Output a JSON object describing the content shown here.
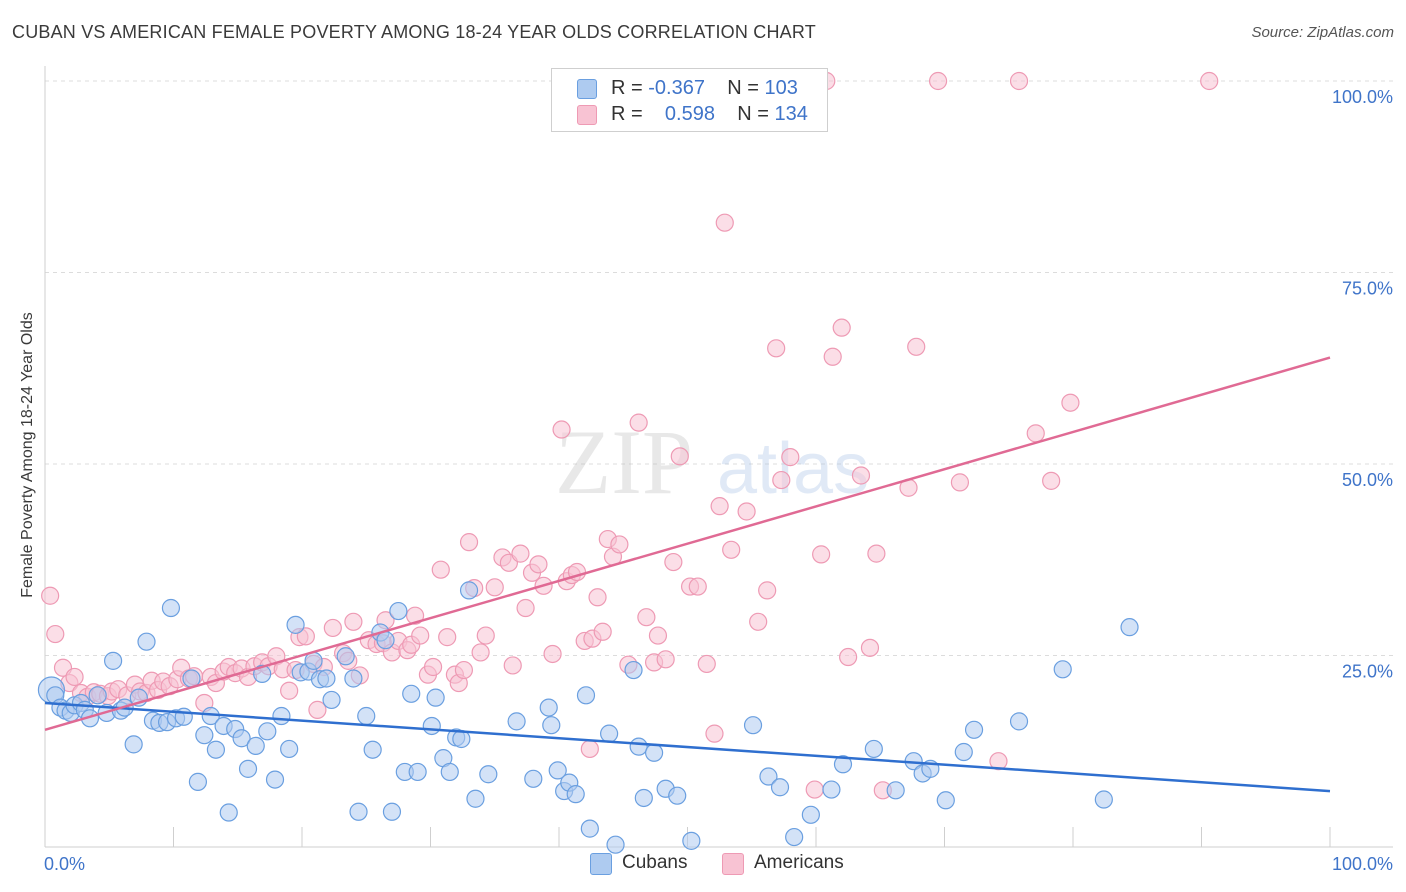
{
  "title": "CUBAN VS AMERICAN FEMALE POVERTY AMONG 18-24 YEAR OLDS CORRELATION CHART",
  "source": "Source: ZipAtlas.com",
  "watermark": {
    "zip": "ZIP",
    "atlas": "atlas"
  },
  "legend": {
    "rows": [
      {
        "r_label": "R =",
        "r_value": "-0.367",
        "n_label": "N =",
        "n_value": "103"
      },
      {
        "r_label": "R =",
        "r_value": "0.598",
        "n_label": "N =",
        "n_value": "134"
      }
    ],
    "bottom": [
      "Cubans",
      "Americans"
    ]
  },
  "colors": {
    "cubans_fill": "#aecbf0",
    "cubans_edge": "#6a9fe0",
    "cubans_line": "#2f6fcf",
    "americans_fill": "#f8c3d3",
    "americans_edge": "#ee9ab4",
    "americans_line": "#e06a94",
    "tick_label": "#3f74c9"
  },
  "chart_data": {
    "type": "scatter",
    "title": "CUBAN VS AMERICAN FEMALE POVERTY AMONG 18-24 YEAR OLDS CORRELATION CHART",
    "xlabel": "",
    "ylabel": "Female Poverty Among 18-24 Year Olds",
    "xlim": [
      0,
      100
    ],
    "ylim": [
      0,
      100
    ],
    "x_tick_labels": [
      "0.0%",
      "100.0%"
    ],
    "y_tick_labels": [
      "25.0%",
      "50.0%",
      "75.0%",
      "100.0%"
    ],
    "y_ticks": [
      25,
      50,
      75,
      100
    ],
    "grid": true,
    "legend_position": "top-center",
    "series": [
      {
        "name": "Cubans",
        "r": -0.367,
        "n": 103,
        "trend": [
          [
            0,
            18.8
          ],
          [
            100,
            7.3
          ]
        ],
        "points": [
          [
            0.5,
            20.5
          ],
          [
            0.8,
            19.8
          ],
          [
            1.2,
            18.2
          ],
          [
            1.6,
            17.8
          ],
          [
            2.0,
            17.5
          ],
          [
            2.3,
            18.5
          ],
          [
            2.8,
            18.8
          ],
          [
            3.1,
            17.9
          ],
          [
            3.5,
            16.8
          ],
          [
            4.1,
            19.8
          ],
          [
            4.8,
            17.5
          ],
          [
            5.3,
            24.3
          ],
          [
            5.9,
            17.8
          ],
          [
            6.2,
            18.2
          ],
          [
            6.9,
            13.4
          ],
          [
            7.3,
            19.5
          ],
          [
            7.9,
            26.8
          ],
          [
            8.4,
            16.5
          ],
          [
            8.9,
            16.2
          ],
          [
            9.5,
            16.3
          ],
          [
            9.8,
            31.2
          ],
          [
            10.2,
            16.8
          ],
          [
            10.8,
            17.0
          ],
          [
            11.4,
            22.0
          ],
          [
            11.9,
            8.5
          ],
          [
            12.4,
            14.6
          ],
          [
            12.9,
            17.1
          ],
          [
            13.3,
            12.7
          ],
          [
            13.9,
            15.8
          ],
          [
            14.3,
            4.5
          ],
          [
            14.8,
            15.4
          ],
          [
            15.3,
            14.2
          ],
          [
            15.8,
            10.2
          ],
          [
            16.4,
            13.2
          ],
          [
            16.9,
            22.6
          ],
          [
            17.3,
            15.1
          ],
          [
            17.9,
            8.8
          ],
          [
            18.4,
            17.1
          ],
          [
            19.0,
            12.8
          ],
          [
            19.5,
            29.0
          ],
          [
            19.9,
            22.8
          ],
          [
            20.5,
            22.9
          ],
          [
            20.9,
            24.3
          ],
          [
            21.4,
            21.9
          ],
          [
            21.9,
            22.0
          ],
          [
            22.3,
            19.2
          ],
          [
            23.4,
            24.9
          ],
          [
            24.0,
            22.0
          ],
          [
            24.4,
            4.6
          ],
          [
            25.0,
            17.1
          ],
          [
            25.5,
            12.7
          ],
          [
            26.1,
            28.0
          ],
          [
            26.5,
            27.0
          ],
          [
            27.0,
            4.6
          ],
          [
            27.5,
            30.8
          ],
          [
            28.0,
            9.8
          ],
          [
            28.5,
            20.0
          ],
          [
            29.0,
            9.8
          ],
          [
            30.1,
            15.8
          ],
          [
            30.4,
            19.5
          ],
          [
            31.0,
            11.6
          ],
          [
            31.5,
            9.8
          ],
          [
            32.0,
            14.3
          ],
          [
            32.4,
            14.1
          ],
          [
            33.0,
            33.5
          ],
          [
            33.5,
            6.3
          ],
          [
            34.5,
            9.5
          ],
          [
            36.7,
            16.4
          ],
          [
            38.0,
            8.9
          ],
          [
            39.2,
            18.2
          ],
          [
            39.4,
            15.9
          ],
          [
            39.9,
            10.0
          ],
          [
            40.4,
            7.3
          ],
          [
            40.8,
            8.4
          ],
          [
            41.3,
            6.9
          ],
          [
            42.1,
            19.8
          ],
          [
            42.4,
            2.4
          ],
          [
            43.9,
            14.8
          ],
          [
            44.4,
            0.3
          ],
          [
            45.8,
            23.1
          ],
          [
            46.2,
            13.1
          ],
          [
            46.6,
            6.4
          ],
          [
            47.4,
            12.3
          ],
          [
            48.3,
            7.6
          ],
          [
            49.2,
            6.7
          ],
          [
            50.3,
            0.8
          ],
          [
            55.1,
            15.9
          ],
          [
            56.3,
            9.2
          ],
          [
            57.2,
            7.8
          ],
          [
            58.3,
            1.3
          ],
          [
            59.6,
            4.2
          ],
          [
            61.2,
            7.5
          ],
          [
            62.1,
            10.8
          ],
          [
            64.5,
            12.8
          ],
          [
            66.2,
            7.4
          ],
          [
            67.6,
            11.2
          ],
          [
            68.3,
            9.6
          ],
          [
            68.9,
            10.2
          ],
          [
            70.1,
            6.1
          ],
          [
            71.5,
            12.4
          ],
          [
            72.3,
            15.3
          ],
          [
            75.8,
            16.4
          ],
          [
            79.2,
            23.2
          ],
          [
            82.4,
            6.2
          ],
          [
            84.4,
            28.7
          ]
        ]
      },
      {
        "name": "Americans",
        "r": 0.598,
        "n": 134,
        "trend": [
          [
            0,
            15.3
          ],
          [
            100,
            63.9
          ]
        ],
        "points": [
          [
            0.4,
            32.8
          ],
          [
            0.8,
            27.8
          ],
          [
            1.4,
            23.4
          ],
          [
            1.9,
            21.4
          ],
          [
            2.3,
            22.2
          ],
          [
            2.8,
            20.1
          ],
          [
            3.3,
            19.6
          ],
          [
            3.8,
            20.2
          ],
          [
            4.3,
            20.0
          ],
          [
            4.9,
            19.7
          ],
          [
            5.2,
            20.3
          ],
          [
            5.7,
            20.6
          ],
          [
            6.4,
            19.8
          ],
          [
            7.0,
            21.2
          ],
          [
            7.4,
            20.3
          ],
          [
            7.9,
            20.1
          ],
          [
            8.3,
            21.7
          ],
          [
            8.8,
            20.5
          ],
          [
            9.2,
            21.6
          ],
          [
            9.7,
            21.0
          ],
          [
            10.3,
            21.9
          ],
          [
            10.6,
            23.4
          ],
          [
            11.2,
            22.0
          ],
          [
            11.6,
            22.3
          ],
          [
            12.4,
            18.8
          ],
          [
            12.9,
            22.2
          ],
          [
            13.3,
            21.4
          ],
          [
            13.9,
            22.9
          ],
          [
            14.3,
            23.5
          ],
          [
            14.8,
            22.7
          ],
          [
            15.3,
            23.3
          ],
          [
            15.8,
            22.2
          ],
          [
            16.3,
            23.6
          ],
          [
            16.9,
            24.1
          ],
          [
            17.4,
            23.6
          ],
          [
            18.0,
            24.9
          ],
          [
            18.5,
            23.2
          ],
          [
            19.0,
            20.4
          ],
          [
            19.5,
            23.1
          ],
          [
            19.8,
            27.4
          ],
          [
            20.3,
            27.5
          ],
          [
            20.9,
            23.9
          ],
          [
            21.2,
            17.9
          ],
          [
            21.7,
            23.5
          ],
          [
            22.4,
            28.6
          ],
          [
            23.2,
            25.3
          ],
          [
            23.6,
            24.3
          ],
          [
            24.0,
            29.4
          ],
          [
            24.5,
            22.4
          ],
          [
            25.2,
            27.0
          ],
          [
            25.8,
            26.5
          ],
          [
            26.3,
            26.6
          ],
          [
            26.5,
            29.6
          ],
          [
            27.0,
            25.4
          ],
          [
            27.5,
            26.9
          ],
          [
            28.2,
            25.7
          ],
          [
            28.5,
            26.4
          ],
          [
            28.8,
            30.2
          ],
          [
            29.2,
            27.6
          ],
          [
            29.8,
            22.5
          ],
          [
            30.2,
            23.5
          ],
          [
            30.8,
            36.2
          ],
          [
            31.3,
            27.4
          ],
          [
            31.9,
            22.5
          ],
          [
            32.2,
            21.4
          ],
          [
            32.6,
            23.1
          ],
          [
            33.0,
            39.8
          ],
          [
            33.4,
            33.8
          ],
          [
            33.9,
            25.4
          ],
          [
            34.3,
            27.6
          ],
          [
            35.0,
            33.9
          ],
          [
            35.6,
            37.8
          ],
          [
            36.1,
            37.1
          ],
          [
            36.4,
            23.7
          ],
          [
            37.0,
            38.3
          ],
          [
            37.4,
            31.2
          ],
          [
            37.9,
            35.8
          ],
          [
            38.4,
            36.9
          ],
          [
            38.8,
            34.1
          ],
          [
            39.5,
            25.2
          ],
          [
            40.2,
            54.5
          ],
          [
            40.6,
            34.7
          ],
          [
            41.0,
            35.5
          ],
          [
            41.4,
            35.9
          ],
          [
            42.0,
            26.9
          ],
          [
            42.4,
            12.8
          ],
          [
            42.6,
            27.2
          ],
          [
            43.0,
            32.6
          ],
          [
            43.4,
            28.1
          ],
          [
            43.8,
            40.2
          ],
          [
            44.2,
            37.9
          ],
          [
            44.7,
            39.5
          ],
          [
            45.4,
            23.8
          ],
          [
            46.2,
            55.4
          ],
          [
            46.8,
            30.0
          ],
          [
            47.4,
            24.1
          ],
          [
            47.7,
            27.6
          ],
          [
            48.3,
            24.5
          ],
          [
            48.9,
            37.2
          ],
          [
            49.4,
            51.0
          ],
          [
            50.2,
            34.0
          ],
          [
            50.8,
            34.0
          ],
          [
            51.5,
            23.9
          ],
          [
            52.1,
            14.8
          ],
          [
            52.5,
            44.5
          ],
          [
            52.9,
            81.5
          ],
          [
            53.4,
            38.8
          ],
          [
            54.6,
            43.8
          ],
          [
            55.5,
            29.4
          ],
          [
            56.2,
            33.5
          ],
          [
            56.9,
            65.1
          ],
          [
            57.3,
            47.9
          ],
          [
            58.0,
            50.9
          ],
          [
            59.9,
            7.5
          ],
          [
            60.4,
            38.2
          ],
          [
            61.3,
            64.0
          ],
          [
            62.0,
            67.8
          ],
          [
            62.5,
            24.8
          ],
          [
            63.5,
            48.5
          ],
          [
            64.2,
            26.0
          ],
          [
            64.7,
            38.3
          ],
          [
            65.2,
            7.4
          ],
          [
            67.2,
            46.9
          ],
          [
            67.8,
            65.3
          ],
          [
            69.5,
            100
          ],
          [
            71.2,
            47.6
          ],
          [
            74.2,
            11.2
          ],
          [
            75.8,
            100
          ],
          [
            77.1,
            54.0
          ],
          [
            78.3,
            47.8
          ],
          [
            79.8,
            58.0
          ],
          [
            90.6,
            100
          ],
          [
            60.8,
            100
          ]
        ]
      }
    ]
  }
}
